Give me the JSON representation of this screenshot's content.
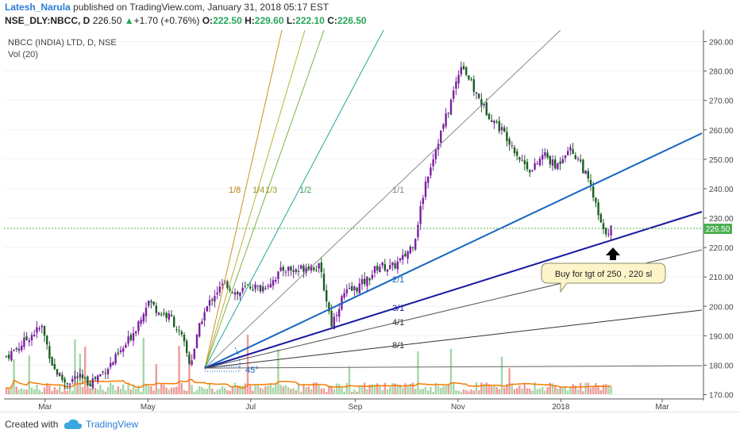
{
  "header": {
    "author": "Latesh_Narula",
    "published_text": "published on TradingView.com, January 31, 2018 05:17 EST",
    "symbol_line": "NSE_DLY:NBCC, D",
    "last_price": "226.50",
    "change": "+1.70 (+0.76%)",
    "open_label": "O:",
    "open": "222.50",
    "high_label": "H:",
    "high": "229.60",
    "low_label": "L:",
    "low": "222.10",
    "close_label": "C:",
    "close": "226.50"
  },
  "footer": {
    "created_with": "Created with",
    "brand": "TradingView"
  },
  "colors": {
    "up_candle": "#7b1fa2",
    "down_candle": "#1b5e20",
    "gann_main": "#1565c0",
    "trend_main": "#1a1aa0",
    "price_line": "#4caf50",
    "ma_line": "#f57c00",
    "vol_up": "#a5d6a7",
    "vol_down": "#ef9a9a"
  },
  "chart_data": {
    "type": "candlestick",
    "title": "NBCC (INDIA) LTD, D, NSE",
    "indicator_label": "Vol (20)",
    "y_axis": {
      "min": 170,
      "max": 290,
      "ticks": [
        "170.00",
        "180.00",
        "190.00",
        "200.00",
        "210.00",
        "220.00",
        "230.00",
        "240.00",
        "250.00",
        "260.00",
        "270.00",
        "280.00",
        "290.00"
      ]
    },
    "x_axis": {
      "ticks": [
        "Mar",
        "May",
        "Jul",
        "Sep",
        "Nov",
        "2018",
        "Mar"
      ]
    },
    "current_price_label": "226.50",
    "gann_fan_labels": [
      "1/8",
      "1/4",
      "1/3",
      "1/2",
      "1/1",
      "2/1",
      "3/1",
      "4/1",
      "8/1"
    ],
    "gann_angle_label": "45°",
    "annotation": "Buy for tgt of 250 , 220 sl",
    "close_series": [
      {
        "date": "2017-02-06",
        "close": 183
      },
      {
        "date": "2017-02-13",
        "close": 186
      },
      {
        "date": "2017-02-20",
        "close": 190
      },
      {
        "date": "2017-02-27",
        "close": 193
      },
      {
        "date": "2017-03-06",
        "close": 179
      },
      {
        "date": "2017-03-13",
        "close": 174
      },
      {
        "date": "2017-03-20",
        "close": 176
      },
      {
        "date": "2017-03-27",
        "close": 174
      },
      {
        "date": "2017-04-03",
        "close": 177
      },
      {
        "date": "2017-04-10",
        "close": 181
      },
      {
        "date": "2017-04-17",
        "close": 186
      },
      {
        "date": "2017-04-24",
        "close": 193
      },
      {
        "date": "2017-05-01",
        "close": 202
      },
      {
        "date": "2017-05-08",
        "close": 198
      },
      {
        "date": "2017-05-15",
        "close": 196
      },
      {
        "date": "2017-05-22",
        "close": 188
      },
      {
        "date": "2017-05-26",
        "close": 180
      },
      {
        "date": "2017-06-02",
        "close": 196
      },
      {
        "date": "2017-06-09",
        "close": 204
      },
      {
        "date": "2017-06-16",
        "close": 208
      },
      {
        "date": "2017-06-23",
        "close": 204
      },
      {
        "date": "2017-06-30",
        "close": 207
      },
      {
        "date": "2017-07-07",
        "close": 206
      },
      {
        "date": "2017-07-14",
        "close": 209
      },
      {
        "date": "2017-07-21",
        "close": 213
      },
      {
        "date": "2017-07-28",
        "close": 212
      },
      {
        "date": "2017-08-04",
        "close": 214
      },
      {
        "date": "2017-08-11",
        "close": 213
      },
      {
        "date": "2017-08-18",
        "close": 194
      },
      {
        "date": "2017-08-25",
        "close": 204
      },
      {
        "date": "2017-09-01",
        "close": 206
      },
      {
        "date": "2017-09-08",
        "close": 209
      },
      {
        "date": "2017-09-15",
        "close": 214
      },
      {
        "date": "2017-09-22",
        "close": 213
      },
      {
        "date": "2017-09-29",
        "close": 216
      },
      {
        "date": "2017-10-06",
        "close": 222
      },
      {
        "date": "2017-10-13",
        "close": 243
      },
      {
        "date": "2017-10-20",
        "close": 256
      },
      {
        "date": "2017-10-27",
        "close": 268
      },
      {
        "date": "2017-11-03",
        "close": 283
      },
      {
        "date": "2017-11-10",
        "close": 274
      },
      {
        "date": "2017-11-17",
        "close": 267
      },
      {
        "date": "2017-11-24",
        "close": 262
      },
      {
        "date": "2017-12-01",
        "close": 257
      },
      {
        "date": "2017-12-08",
        "close": 250
      },
      {
        "date": "2017-12-15",
        "close": 246
      },
      {
        "date": "2017-12-22",
        "close": 252
      },
      {
        "date": "2017-12-29",
        "close": 247
      },
      {
        "date": "2018-01-05",
        "close": 254
      },
      {
        "date": "2018-01-12",
        "close": 250
      },
      {
        "date": "2018-01-19",
        "close": 240
      },
      {
        "date": "2018-01-26",
        "close": 225
      },
      {
        "date": "2018-01-31",
        "close": 226.5
      }
    ]
  }
}
